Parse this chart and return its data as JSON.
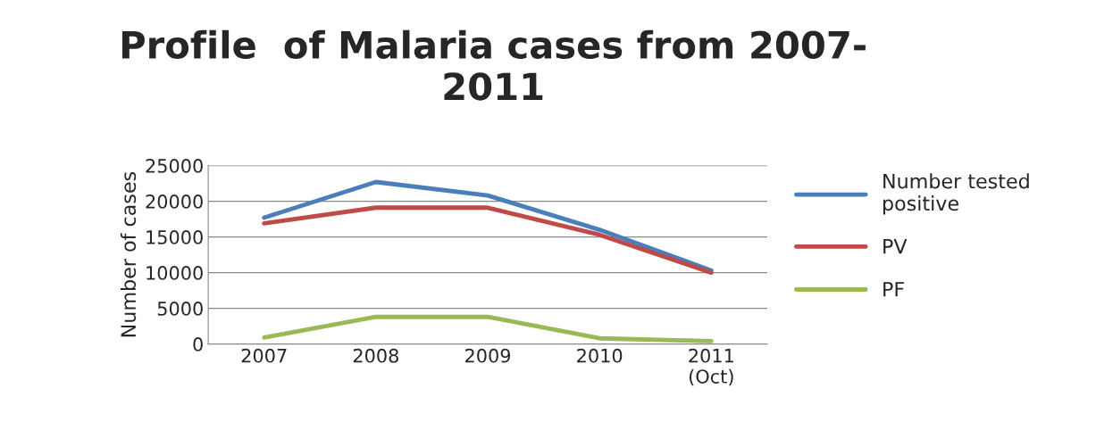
{
  "chart_data": {
    "type": "line",
    "title": "Profile  of Malaria cases from 2007-\n2011",
    "ylabel": "Number of cases",
    "categories": [
      "2007",
      "2008",
      "2009",
      "2010",
      "2011\n(Oct)"
    ],
    "series": [
      {
        "name": "Number tested\npositive",
        "color": "#4a7ebb",
        "values": [
          17700,
          22700,
          20800,
          16000,
          10300
        ]
      },
      {
        "name": "PV",
        "color": "#be4b48",
        "values": [
          16900,
          19100,
          19100,
          15300,
          10000
        ]
      },
      {
        "name": "PF",
        "color": "#98b954",
        "values": [
          900,
          3800,
          3800,
          800,
          400
        ]
      }
    ],
    "ylim": [
      0,
      25000
    ],
    "yticks": [
      0,
      5000,
      10000,
      15000,
      20000,
      25000
    ],
    "grid": "y",
    "legend": "right",
    "marker": "none",
    "line_style": "solid"
  }
}
